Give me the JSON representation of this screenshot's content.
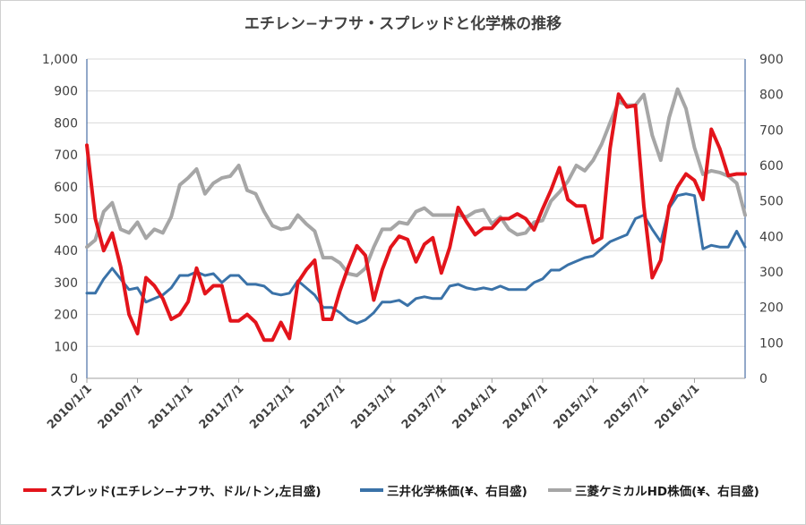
{
  "chart_data": {
    "type": "line",
    "title": "エチレン−ナフサ・スプレッドと化学株の推移",
    "x": [
      "2010/1/1",
      "2010/2/1",
      "2010/3/1",
      "2010/4/1",
      "2010/5/1",
      "2010/6/1",
      "2010/7/1",
      "2010/8/1",
      "2010/9/1",
      "2010/10/1",
      "2010/11/1",
      "2010/12/1",
      "2011/1/1",
      "2011/2/1",
      "2011/3/1",
      "2011/4/1",
      "2011/5/1",
      "2011/6/1",
      "2011/7/1",
      "2011/8/1",
      "2011/9/1",
      "2011/10/1",
      "2011/11/1",
      "2011/12/1",
      "2012/1/1",
      "2012/2/1",
      "2012/3/1",
      "2012/4/1",
      "2012/5/1",
      "2012/6/1",
      "2012/7/1",
      "2012/8/1",
      "2012/9/1",
      "2012/10/1",
      "2012/11/1",
      "2012/12/1",
      "2013/1/1",
      "2013/2/1",
      "2013/3/1",
      "2013/4/1",
      "2013/5/1",
      "2013/6/1",
      "2013/7/1",
      "2013/8/1",
      "2013/9/1",
      "2013/10/1",
      "2013/11/1",
      "2013/12/1",
      "2014/1/1",
      "2014/2/1",
      "2014/3/1",
      "2014/4/1",
      "2014/5/1",
      "2014/6/1",
      "2014/7/1",
      "2014/8/1",
      "2014/9/1",
      "2014/10/1",
      "2014/11/1",
      "2014/12/1",
      "2015/1/1",
      "2015/2/1",
      "2015/3/1",
      "2015/4/1",
      "2015/5/1",
      "2015/6/1",
      "2015/7/1",
      "2015/8/1",
      "2015/9/1",
      "2015/10/1",
      "2015/11/1",
      "2015/12/1",
      "2016/1/1",
      "2016/2/1",
      "2016/3/1",
      "2016/4/1",
      "2016/5/1",
      "2016/6/1",
      "2016/7/1"
    ],
    "x_tick_labels": [
      "2010/1/1",
      "2010/7/1",
      "2011/1/1",
      "2011/7/1",
      "2012/1/1",
      "2012/7/1",
      "2013/1/1",
      "2013/7/1",
      "2014/1/1",
      "2014/7/1",
      "2015/1/1",
      "2015/7/1",
      "2016/1/1"
    ],
    "y_left": {
      "min": 0,
      "max": 1000,
      "ticks": [
        "0",
        "100",
        "200",
        "300",
        "400",
        "500",
        "600",
        "700",
        "800",
        "900",
        "1,000"
      ]
    },
    "y_right": {
      "min": 0,
      "max": 900,
      "ticks": [
        "0",
        "100",
        "200",
        "300",
        "400",
        "500",
        "600",
        "700",
        "800",
        "900"
      ]
    },
    "grid": "horizontal",
    "legend_position": "bottom",
    "series": [
      {
        "name": "スプレッド(エチレン−ナフサ、ドル/トン,左目盛)",
        "color": "#e3141b",
        "axis": "left",
        "values": [
          730,
          500,
          400,
          455,
          350,
          200,
          140,
          315,
          290,
          250,
          185,
          200,
          240,
          345,
          265,
          290,
          290,
          180,
          180,
          200,
          175,
          120,
          120,
          175,
          125,
          300,
          340,
          370,
          185,
          185,
          275,
          350,
          415,
          385,
          245,
          340,
          410,
          445,
          435,
          365,
          420,
          440,
          330,
          410,
          535,
          490,
          450,
          470,
          470,
          500,
          500,
          515,
          500,
          465,
          530,
          590,
          660,
          560,
          540,
          540,
          425,
          440,
          720,
          890,
          850,
          855,
          540,
          315,
          370,
          540,
          600,
          640,
          620,
          560,
          780,
          720,
          635,
          640,
          640
        ]
      },
      {
        "name": "三井化学株価(¥、右目盛)",
        "color": "#3a72a8",
        "axis": "right",
        "values": [
          240,
          240,
          280,
          310,
          280,
          250,
          255,
          215,
          225,
          235,
          255,
          290,
          290,
          300,
          290,
          295,
          270,
          290,
          290,
          265,
          265,
          260,
          240,
          235,
          240,
          275,
          255,
          235,
          200,
          200,
          185,
          165,
          155,
          165,
          185,
          215,
          215,
          220,
          205,
          225,
          230,
          225,
          225,
          260,
          265,
          255,
          250,
          255,
          250,
          260,
          250,
          250,
          250,
          270,
          280,
          305,
          305,
          320,
          330,
          340,
          345,
          365,
          385,
          395,
          405,
          450,
          460,
          420,
          385,
          480,
          515,
          520,
          515,
          365,
          375,
          370,
          370,
          415,
          370
        ]
      },
      {
        "name": "三菱ケミカルHD株価(¥、右目盛)",
        "color": "#a6a6a6",
        "axis": "right",
        "values": [
          370,
          390,
          470,
          495,
          420,
          410,
          440,
          395,
          420,
          410,
          455,
          545,
          565,
          590,
          520,
          550,
          565,
          570,
          600,
          530,
          520,
          470,
          430,
          420,
          425,
          460,
          435,
          415,
          340,
          340,
          325,
          295,
          290,
          310,
          370,
          420,
          420,
          440,
          435,
          470,
          480,
          460,
          460,
          460,
          460,
          455,
          470,
          475,
          435,
          455,
          420,
          405,
          410,
          440,
          445,
          500,
          525,
          555,
          600,
          585,
          615,
          660,
          720,
          780,
          770,
          770,
          800,
          685,
          615,
          735,
          815,
          760,
          650,
          575,
          585,
          580,
          570,
          550,
          460
        ]
      }
    ]
  }
}
